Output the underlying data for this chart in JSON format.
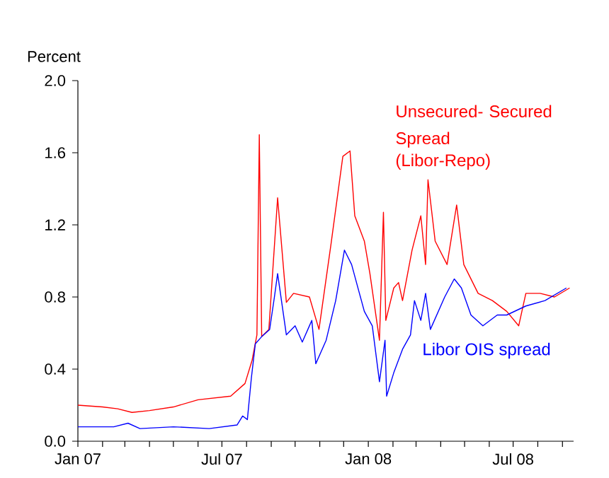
{
  "chart_data": {
    "type": "line",
    "ylabel": "Percent",
    "xlim": [
      "2007-01-01",
      "2008-09-15"
    ],
    "ylim": [
      0,
      2.0
    ],
    "yticks": [
      {
        "value": 0,
        "label": "0.0"
      },
      0.4,
      0.8,
      1.2,
      1.6,
      {
        "value": 2.0,
        "label": "2.0"
      }
    ],
    "xticks": [
      {
        "value": "2007-01-01",
        "label": "Jan 07"
      },
      {
        "value": "2007-02-01",
        "label": null
      },
      {
        "value": "2007-03-01",
        "label": null
      },
      {
        "value": "2007-04-01",
        "label": null
      },
      {
        "value": "2007-05-01",
        "label": null
      },
      {
        "value": "2007-06-01",
        "label": null
      },
      {
        "value": "2007-07-01",
        "label": "Jul 07"
      },
      {
        "value": "2007-08-01",
        "label": null
      },
      {
        "value": "2007-09-01",
        "label": null
      },
      {
        "value": "2007-10-01",
        "label": null
      },
      {
        "value": "2007-11-01",
        "label": null
      },
      {
        "value": "2007-12-01",
        "label": null
      },
      {
        "value": "2008-01-01",
        "label": "Jan 08"
      },
      {
        "value": "2008-02-01",
        "label": null
      },
      {
        "value": "2008-03-01",
        "label": null
      },
      {
        "value": "2008-04-01",
        "label": null
      },
      {
        "value": "2008-05-01",
        "label": null
      },
      {
        "value": "2008-06-01",
        "label": null
      },
      {
        "value": "2008-07-01",
        "label": "Jul 08"
      },
      {
        "value": "2008-08-01",
        "label": null
      },
      {
        "value": "2008-09-01",
        "label": null
      }
    ],
    "annotations": [
      "(Libor-Repo)"
    ],
    "series": [
      {
        "name": "Unsecured- Secured Spread",
        "color": "#ff0000",
        "x": [
          "2007-01-01",
          "2007-02-01",
          "2007-02-20",
          "2007-03-10",
          "2007-04-01",
          "2007-05-01",
          "2007-06-01",
          "2007-07-12",
          "2007-07-30",
          "2007-08-08",
          "2007-08-14",
          "2007-08-17",
          "2007-08-20",
          "2007-08-29",
          "2007-09-09",
          "2007-09-20",
          "2007-09-29",
          "2007-10-19",
          "2007-10-31",
          "2007-11-15",
          "2007-11-30",
          "2007-12-09",
          "2007-12-15",
          "2007-12-27",
          "2008-01-03",
          "2008-01-15",
          "2008-01-20",
          "2008-01-23",
          "2008-02-02",
          "2008-02-08",
          "2008-02-13",
          "2008-02-25",
          "2008-03-07",
          "2008-03-13",
          "2008-03-16",
          "2008-03-25",
          "2008-04-09",
          "2008-04-21",
          "2008-04-30",
          "2008-05-18",
          "2008-06-05",
          "2008-06-23",
          "2008-07-08",
          "2008-07-17",
          "2008-08-04",
          "2008-08-22",
          "2008-09-10"
        ],
        "values": [
          0.2,
          0.19,
          0.18,
          0.16,
          0.17,
          0.19,
          0.23,
          0.25,
          0.32,
          0.45,
          0.59,
          1.7,
          0.58,
          0.62,
          1.35,
          0.77,
          0.82,
          0.8,
          0.62,
          1.09,
          1.58,
          1.61,
          1.25,
          1.11,
          0.93,
          0.56,
          1.27,
          0.67,
          0.85,
          0.88,
          0.78,
          1.06,
          1.25,
          0.98,
          1.45,
          1.11,
          0.98,
          1.31,
          0.98,
          0.82,
          0.78,
          0.72,
          0.64,
          0.82,
          0.82,
          0.8,
          0.85
        ]
      },
      {
        "name": "Libor OIS spread",
        "color": "#0000ff",
        "x": [
          "2007-01-01",
          "2007-02-15",
          "2007-03-05",
          "2007-03-20",
          "2007-05-01",
          "2007-06-15",
          "2007-07-20",
          "2007-07-27",
          "2007-08-02",
          "2007-08-07",
          "2007-08-12",
          "2007-08-20",
          "2007-08-30",
          "2007-09-05",
          "2007-09-09",
          "2007-09-20",
          "2007-10-01",
          "2007-10-10",
          "2007-10-22",
          "2007-10-27",
          "2007-11-09",
          "2007-11-21",
          "2007-12-02",
          "2007-12-11",
          "2007-12-27",
          "2008-01-06",
          "2008-01-15",
          "2008-01-22",
          "2008-01-24",
          "2008-02-02",
          "2008-02-13",
          "2008-02-23",
          "2008-02-28",
          "2008-03-07",
          "2008-03-13",
          "2008-03-19",
          "2008-04-06",
          "2008-04-18",
          "2008-04-27",
          "2008-05-09",
          "2008-05-24",
          "2008-06-11",
          "2008-06-23",
          "2008-07-17",
          "2008-08-10",
          "2008-09-06"
        ],
        "values": [
          0.08,
          0.08,
          0.1,
          0.07,
          0.08,
          0.07,
          0.09,
          0.14,
          0.12,
          0.35,
          0.54,
          0.58,
          0.62,
          0.8,
          0.93,
          0.59,
          0.64,
          0.55,
          0.67,
          0.43,
          0.56,
          0.78,
          1.06,
          0.98,
          0.72,
          0.64,
          0.33,
          0.56,
          0.25,
          0.38,
          0.51,
          0.59,
          0.78,
          0.67,
          0.82,
          0.62,
          0.8,
          0.9,
          0.85,
          0.7,
          0.64,
          0.7,
          0.7,
          0.75,
          0.78,
          0.85
        ]
      }
    ]
  }
}
